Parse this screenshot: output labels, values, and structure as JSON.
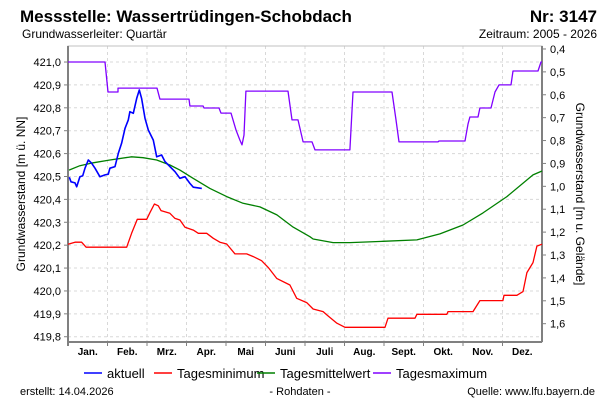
{
  "header": {
    "title": "Messstelle: Wassertrüdingen-Schobdach",
    "number": "Nr: 3147",
    "aquifer": "Grundwasserleiter: Quartär",
    "period": "Zeitraum: 2005 - 2026"
  },
  "footer": {
    "created": "erstellt:  14.04.2026",
    "raw": "- Rohdaten -",
    "source": "Quelle: www.lfu.bayern.de"
  },
  "colors": {
    "aktuell": "#0000ff",
    "min": "#ff0000",
    "mean": "#008000",
    "max": "#8000ff",
    "source": "#0000ff",
    "grid": "#d8d8d8",
    "axis": "#808080"
  },
  "chart_data": {
    "type": "line",
    "xlabel": "",
    "ylabel": "Grundwasserstand [m ü. NN]",
    "ylabel_right": "Grundwasserstand [m u. Gelände]",
    "xlim": [
      0,
      365
    ],
    "ylim": [
      419.777,
      421.07
    ],
    "right_axis_offset": 421.457,
    "grid": true,
    "legend_position": "bottom",
    "x_tick_labels": [
      "Jan.",
      "Feb.",
      "Mrz.",
      "Apr.",
      "Mai",
      "Juni",
      "Juli",
      "Aug.",
      "Sept.",
      "Okt.",
      "Nov.",
      "Dez."
    ],
    "y_ticks": [
      "421,0",
      "420,9",
      "420,8",
      "420,7",
      "420,6",
      "420,5",
      "420,4",
      "420,3",
      "420,2",
      "420,1",
      "420,0",
      "419,9",
      "419,8"
    ],
    "y_tick_values": [
      421.0,
      420.9,
      420.8,
      420.7,
      420.6,
      420.5,
      420.4,
      420.3,
      420.2,
      420.1,
      420.0,
      419.9,
      419.8
    ],
    "y_right_ticks": [
      "0,4",
      "0,5",
      "0,6",
      "0,7",
      "0,8",
      "0,9",
      "1,0",
      "1,1",
      "1,2",
      "1,3",
      "1,4",
      "1,5",
      "1,6"
    ],
    "y_right_tick_values": [
      0.4,
      0.5,
      0.6,
      0.7,
      0.8,
      0.9,
      1.0,
      1.1,
      1.2,
      1.3,
      1.4,
      1.5,
      1.6
    ],
    "series": [
      {
        "name": "Tagesmaximum",
        "key": "max",
        "points": [
          [
            0,
            421.0
          ],
          [
            28.5,
            421.0
          ],
          [
            30.8,
            420.869
          ],
          [
            38.5,
            420.869
          ],
          [
            38.5,
            420.886
          ],
          [
            68.5,
            420.886
          ],
          [
            70.8,
            420.838
          ],
          [
            93.2,
            420.838
          ],
          [
            93.9,
            420.808
          ],
          [
            104,
            420.808
          ],
          [
            104.7,
            420.799
          ],
          [
            116.3,
            420.799
          ],
          [
            117.8,
            420.777
          ],
          [
            125.5,
            420.777
          ],
          [
            129.4,
            420.703
          ],
          [
            132.4,
            420.659
          ],
          [
            134,
            420.638
          ],
          [
            135.5,
            420.681
          ],
          [
            137,
            420.873
          ],
          [
            169.4,
            420.873
          ],
          [
            172.5,
            420.747
          ],
          [
            177.1,
            420.747
          ],
          [
            181,
            420.651
          ],
          [
            187.9,
            420.651
          ],
          [
            190.2,
            420.616
          ],
          [
            217.1,
            420.616
          ],
          [
            219.5,
            420.869
          ],
          [
            249.5,
            420.869
          ],
          [
            252.6,
            420.747
          ],
          [
            254.9,
            420.651
          ],
          [
            284.9,
            420.651
          ],
          [
            285.7,
            420.655
          ],
          [
            305.7,
            420.655
          ],
          [
            308,
            420.729
          ],
          [
            309.5,
            420.76
          ],
          [
            315.7,
            420.76
          ],
          [
            317.2,
            420.799
          ],
          [
            325.7,
            420.799
          ],
          [
            328.8,
            420.869
          ],
          [
            331.9,
            420.9
          ],
          [
            341.1,
            420.9
          ],
          [
            342.7,
            420.961
          ],
          [
            361.9,
            420.961
          ],
          [
            364.2,
            421.0
          ],
          [
            365,
            421.0
          ]
        ]
      },
      {
        "name": "Tagesmittelwert",
        "key": "mean",
        "points": [
          [
            0.8,
            420.528
          ],
          [
            9.2,
            420.547
          ],
          [
            19.3,
            420.56
          ],
          [
            32.3,
            420.572
          ],
          [
            49,
            420.586
          ],
          [
            57.8,
            420.582
          ],
          [
            68.3,
            420.572
          ],
          [
            78.5,
            420.55
          ],
          [
            86.2,
            420.528
          ],
          [
            96.3,
            420.492
          ],
          [
            109.3,
            420.448
          ],
          [
            122.2,
            420.412
          ],
          [
            134.8,
            420.383
          ],
          [
            147.8,
            420.367
          ],
          [
            160.9,
            420.332
          ],
          [
            173.3,
            420.279
          ],
          [
            186.3,
            420.237
          ],
          [
            188.7,
            420.227
          ],
          [
            204.1,
            420.211
          ],
          [
            217.1,
            420.211
          ],
          [
            242.6,
            420.217
          ],
          [
            268.7,
            420.223
          ],
          [
            286.4,
            420.249
          ],
          [
            304.2,
            420.288
          ],
          [
            319.6,
            420.341
          ],
          [
            338,
            420.412
          ],
          [
            358.1,
            420.507
          ],
          [
            365,
            420.524
          ]
        ]
      },
      {
        "name": "Tagesminimum",
        "key": "min",
        "points": [
          [
            0,
            420.204
          ],
          [
            5.4,
            420.213
          ],
          [
            10.5,
            420.213
          ],
          [
            13.9,
            420.191
          ],
          [
            45.2,
            420.191
          ],
          [
            49,
            420.252
          ],
          [
            53.4,
            420.313
          ],
          [
            60.6,
            420.313
          ],
          [
            63.1,
            420.342
          ],
          [
            66.5,
            420.38
          ],
          [
            69.5,
            420.372
          ],
          [
            71.6,
            420.351
          ],
          [
            78.5,
            420.339
          ],
          [
            82.4,
            420.317
          ],
          [
            86.2,
            420.31
          ],
          [
            90.1,
            420.278
          ],
          [
            96.5,
            420.266
          ],
          [
            100.3,
            420.252
          ],
          [
            106.8,
            420.252
          ],
          [
            111.9,
            420.23
          ],
          [
            117,
            420.213
          ],
          [
            122.2,
            420.205
          ],
          [
            128.6,
            420.162
          ],
          [
            137.6,
            420.162
          ],
          [
            142.7,
            420.15
          ],
          [
            149.1,
            420.132
          ],
          [
            154.2,
            420.103
          ],
          [
            160.7,
            420.055
          ],
          [
            170.9,
            420.026
          ],
          [
            176.1,
            419.968
          ],
          [
            183.8,
            419.949
          ],
          [
            188.7,
            419.921
          ],
          [
            196.4,
            419.91
          ],
          [
            200.2,
            419.891
          ],
          [
            207.1,
            419.859
          ],
          [
            213.3,
            419.841
          ],
          [
            244.1,
            419.841
          ],
          [
            246.4,
            419.881
          ],
          [
            267.2,
            419.881
          ],
          [
            268.7,
            419.898
          ],
          [
            291.8,
            419.898
          ],
          [
            292.6,
            419.91
          ],
          [
            311.9,
            419.91
          ],
          [
            317.2,
            419.958
          ],
          [
            334.9,
            419.958
          ],
          [
            335.7,
            419.981
          ],
          [
            345.7,
            419.981
          ],
          [
            350.4,
            419.997
          ],
          [
            353.4,
            420.08
          ],
          [
            358.1,
            420.124
          ],
          [
            361.1,
            420.196
          ],
          [
            365,
            420.204
          ]
        ]
      },
      {
        "name": "aktuell",
        "key": "aktuell",
        "points": [
          [
            1,
            420.497
          ],
          [
            2.3,
            420.477
          ],
          [
            5.4,
            420.472
          ],
          [
            6.7,
            420.455
          ],
          [
            9.2,
            420.499
          ],
          [
            11.3,
            420.503
          ],
          [
            13.1,
            420.536
          ],
          [
            15.6,
            420.572
          ],
          [
            18.2,
            420.558
          ],
          [
            20.8,
            420.536
          ],
          [
            24.6,
            420.499
          ],
          [
            28.5,
            420.507
          ],
          [
            31,
            420.51
          ],
          [
            32.3,
            420.536
          ],
          [
            36.2,
            420.543
          ],
          [
            38.7,
            420.601
          ],
          [
            41.3,
            420.645
          ],
          [
            43.9,
            420.71
          ],
          [
            46.4,
            420.747
          ],
          [
            47.7,
            420.783
          ],
          [
            50.3,
            420.776
          ],
          [
            52.9,
            420.841
          ],
          [
            54.9,
            420.878
          ],
          [
            56.7,
            420.841
          ],
          [
            59.3,
            420.754
          ],
          [
            61.8,
            420.703
          ],
          [
            65.7,
            420.659
          ],
          [
            68.3,
            420.586
          ],
          [
            72.1,
            420.594
          ],
          [
            74.7,
            420.565
          ],
          [
            78.5,
            420.543
          ],
          [
            82.4,
            420.521
          ],
          [
            86.2,
            420.492
          ],
          [
            90.1,
            420.499
          ],
          [
            93.9,
            420.47
          ],
          [
            96.5,
            420.453
          ],
          [
            103,
            420.448
          ]
        ]
      }
    ],
    "legend": [
      {
        "label": "aktuell",
        "key": "aktuell"
      },
      {
        "label": "Tagesminimum",
        "key": "min"
      },
      {
        "label": "Tagesmittelwert",
        "key": "mean"
      },
      {
        "label": "Tagesmaximum",
        "key": "max"
      }
    ]
  }
}
